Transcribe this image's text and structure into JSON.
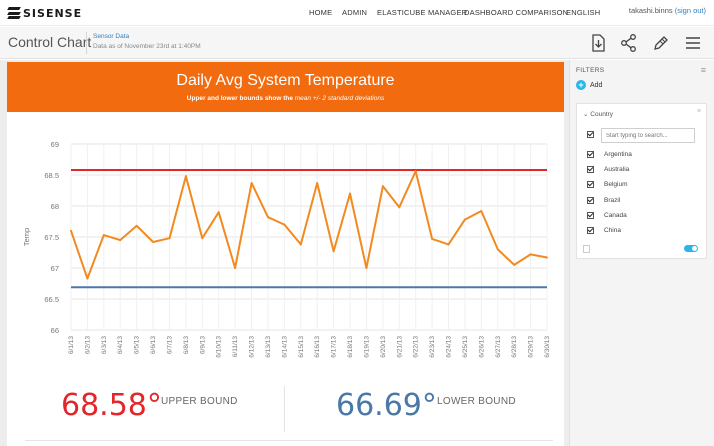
{
  "nav": {
    "logo": "SISENSE",
    "items": [
      "HOME",
      "ADMIN",
      "ELASTICUBE MANAGER",
      "DASHBOARD COMPARISON",
      "ENGLISH"
    ],
    "user": "takashi.binns",
    "signout": "(sign out)"
  },
  "dashboard": {
    "title": "Control Chart",
    "source": "Sensor Data",
    "as_of": "Data as of November 23rd at 1:40PM"
  },
  "widget": {
    "title": "Daily Avg System Temperature",
    "subtitle_pre": "Upper and lower bounds show the ",
    "subtitle_em": "mean +/- 2 standard deviations"
  },
  "indicators": {
    "upper_value": "68.58°",
    "upper_label": "UPPER BOUND",
    "upper_color": "#e3262a",
    "lower_value": "66.69°",
    "lower_label": "LOWER BOUND",
    "lower_color": "#4a78a8"
  },
  "filters": {
    "label": "FILTERS",
    "add": "Add",
    "card_title": "Country",
    "search_placeholder": "Start typing to search...",
    "items": [
      "Argentina",
      "Australia",
      "Belgium",
      "Brazil",
      "Canada",
      "China"
    ]
  },
  "colors": {
    "banner": "#f26b0f",
    "line": "#f28a1f",
    "upper": "#e3262a",
    "lower": "#4a78a8"
  },
  "chart_data": {
    "type": "line",
    "ylabel": "Temp",
    "xlabel": "",
    "ylim": [
      66,
      69
    ],
    "yticks": [
      66,
      66.5,
      67,
      67.5,
      68,
      68.5,
      69
    ],
    "grid": true,
    "categories": [
      "6/1/13",
      "6/2/13",
      "6/3/13",
      "6/4/13",
      "6/5/13",
      "6/6/13",
      "6/7/13",
      "6/8/13",
      "6/9/13",
      "6/10/13",
      "6/11/13",
      "6/12/13",
      "6/13/13",
      "6/14/13",
      "6/15/13",
      "6/16/13",
      "6/17/13",
      "6/18/13",
      "6/19/13",
      "6/20/13",
      "6/21/13",
      "6/22/13",
      "6/23/13",
      "6/24/13",
      "6/25/13",
      "6/26/13",
      "6/27/13",
      "6/28/13",
      "6/29/13",
      "6/30/13"
    ],
    "series": [
      {
        "name": "",
        "values": [
          67.6,
          66.83,
          67.53,
          67.45,
          67.68,
          67.42,
          67.48,
          68.48,
          67.48,
          67.9,
          67.0,
          68.37,
          67.82,
          67.7,
          67.38,
          68.37,
          67.27,
          68.2,
          67.0,
          68.32,
          67.98,
          68.56,
          67.47,
          67.38,
          67.78,
          67.92,
          67.3,
          67.05,
          67.22,
          67.17
        ]
      }
    ],
    "upper_bound": 68.58,
    "lower_bound": 66.69
  }
}
